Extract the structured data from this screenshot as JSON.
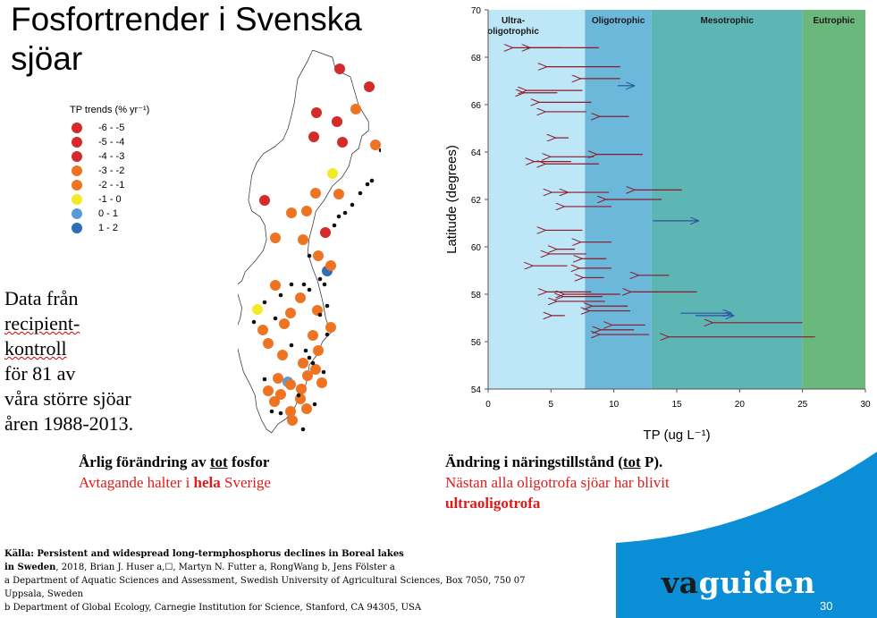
{
  "title": {
    "line1": "Fosfortrender i Svenska",
    "line2": "sjöar"
  },
  "legend": {
    "title": "TP trends (% yr⁻¹)",
    "items": [
      {
        "label": "-6 - -5",
        "color": "#d42a2a"
      },
      {
        "label": "-5 - -4",
        "color": "#d42a2a"
      },
      {
        "label": "-4 - -3",
        "color": "#d42a2a"
      },
      {
        "label": "-3 - -2",
        "color": "#ee7424"
      },
      {
        "label": "-2 - -1",
        "color": "#ee7424"
      },
      {
        "label": "-1 - 0",
        "color": "#f2ea28"
      },
      {
        "label": "0 - 1",
        "color": "#5b9bd5"
      },
      {
        "label": "1 - 2",
        "color": "#2f6db5"
      }
    ]
  },
  "data_text": {
    "line1a": "Data från ",
    "line1b": "recipient-",
    "line2a": "kontroll",
    "line2b": " för 81 av",
    "line3": "våra större sjöar",
    "line4": "åren 1988-2013."
  },
  "caption_left": {
    "line1a": "Årlig förändring av ",
    "line1b": "tot",
    "line1c": " fosfor",
    "line2a": "Avtagande halter i ",
    "line2b": "hela",
    "line2c": " Sverige"
  },
  "caption_right": {
    "line1a": "Ändring i näringstillstånd  (",
    "line1b": "tot",
    "line1c": " P).",
    "line2": "Nästan alla oligotrofa sjöar har blivit",
    "line3": "ultraoligotrofa"
  },
  "source": {
    "line1a": "Källa: Persistent and widespread long-termphosphorus declines in Boreal lakes",
    "line2a": "in Sweden",
    "line2b": ", 2018, Brian J. Huser a,☐, Martyn N. Futter a, RongWang b, Jens Fölster a",
    "line3": "a Department of Aquatic Sciences and Assessment, Swedish University of Agricultural Sciences, Box 7050, 750 07",
    "line4": "Uppsala, Sweden",
    "line5": "b Department of Global Ecology, Carnegie Institution for Science, Stanford, CA 94305, USA"
  },
  "logo": {
    "va": "va",
    "guiden": "guiden"
  },
  "page_number": "30",
  "colors": {
    "ultra": "#bde6f7",
    "oligo": "#6cb8db",
    "meso": "#5db5b4",
    "eutro": "#6ab87c",
    "arrow_red": "#8b1a2a",
    "arrow_blue": "#2c4fa0",
    "swoosh": "#0a8fd6"
  },
  "chart_data": {
    "type": "scatter",
    "xlabel": "TP (ug L⁻¹)",
    "ylabel": "Latitude (degrees)",
    "xlim": [
      0,
      30
    ],
    "ylim": [
      54,
      70
    ],
    "xticks": [
      "0",
      "5",
      "10",
      "15",
      "20",
      "25",
      "30"
    ],
    "yticks": [
      "54",
      "56",
      "58",
      "60",
      "62",
      "64",
      "66",
      "68",
      "70"
    ],
    "zones": [
      {
        "label": "Ultra-\noligotrophic",
        "from": 0,
        "to": 7.7,
        "color": "#bde6f7"
      },
      {
        "label": "Oligotrophic",
        "from": 7.7,
        "to": 13,
        "color": "#6cb8db"
      },
      {
        "label": "Mesotrophic",
        "from": 13,
        "to": 25,
        "color": "#5db5b4"
      },
      {
        "label": "Eutrophic",
        "from": 25,
        "to": 30,
        "color": "#6ab87c"
      }
    ],
    "arrows": [
      {
        "from": 8.8,
        "to": 1.9,
        "lat": 68.4,
        "dir": "down"
      },
      {
        "from": 5.8,
        "to": 3.3,
        "lat": 68.4,
        "dir": "down"
      },
      {
        "from": 10.5,
        "to": 4.6,
        "lat": 67.6,
        "dir": "down"
      },
      {
        "from": 10.5,
        "to": 7.3,
        "lat": 67.1,
        "dir": "down"
      },
      {
        "from": 10.3,
        "to": 11.6,
        "lat": 66.8,
        "dir": "up"
      },
      {
        "from": 7.5,
        "to": 3.0,
        "lat": 66.6,
        "dir": "down"
      },
      {
        "from": 5.5,
        "to": 2.8,
        "lat": 66.5,
        "dir": "down"
      },
      {
        "from": 8.2,
        "to": 4.0,
        "lat": 66.1,
        "dir": "down"
      },
      {
        "from": 7.8,
        "to": 4.5,
        "lat": 65.7,
        "dir": "down"
      },
      {
        "from": 11.2,
        "to": 8.8,
        "lat": 65.5,
        "dir": "down"
      },
      {
        "from": 6.4,
        "to": 5.3,
        "lat": 64.6,
        "dir": "down"
      },
      {
        "from": 12.3,
        "to": 8.6,
        "lat": 63.9,
        "dir": "down"
      },
      {
        "from": 8.4,
        "to": 4.9,
        "lat": 63.8,
        "dir": "down"
      },
      {
        "from": 6.6,
        "to": 3.6,
        "lat": 63.6,
        "dir": "down"
      },
      {
        "from": 8.8,
        "to": 4.5,
        "lat": 63.5,
        "dir": "down"
      },
      {
        "from": 15.4,
        "to": 11.6,
        "lat": 62.4,
        "dir": "down"
      },
      {
        "from": 9.6,
        "to": 6.3,
        "lat": 62.3,
        "dir": "down"
      },
      {
        "from": 6.5,
        "to": 5.0,
        "lat": 62.3,
        "dir": "down"
      },
      {
        "from": 13.8,
        "to": 9.3,
        "lat": 62.0,
        "dir": "down"
      },
      {
        "from": 9.8,
        "to": 6.0,
        "lat": 61.7,
        "dir": "down"
      },
      {
        "from": 13.1,
        "to": 16.7,
        "lat": 61.1,
        "dir": "up"
      },
      {
        "from": 7.5,
        "to": 4.5,
        "lat": 60.7,
        "dir": "down"
      },
      {
        "from": 9.8,
        "to": 7.3,
        "lat": 60.2,
        "dir": "down"
      },
      {
        "from": 6.9,
        "to": 5.4,
        "lat": 59.9,
        "dir": "down"
      },
      {
        "from": 7.8,
        "to": 4.8,
        "lat": 59.7,
        "dir": "down"
      },
      {
        "from": 9.4,
        "to": 7.4,
        "lat": 59.5,
        "dir": "down"
      },
      {
        "from": 6.3,
        "to": 3.5,
        "lat": 59.2,
        "dir": "down"
      },
      {
        "from": 9.8,
        "to": 7.2,
        "lat": 59.1,
        "dir": "down"
      },
      {
        "from": 14.4,
        "to": 11.9,
        "lat": 58.8,
        "dir": "down"
      },
      {
        "from": 9.2,
        "to": 7.5,
        "lat": 58.7,
        "dir": "down"
      },
      {
        "from": 8.2,
        "to": 4.6,
        "lat": 58.1,
        "dir": "down"
      },
      {
        "from": 16.6,
        "to": 11.3,
        "lat": 58.1,
        "dir": "down"
      },
      {
        "from": 10.5,
        "to": 6.0,
        "lat": 58.0,
        "dir": "down"
      },
      {
        "from": 9.1,
        "to": 5.9,
        "lat": 57.9,
        "dir": "down"
      },
      {
        "from": 9.3,
        "to": 5.4,
        "lat": 57.7,
        "dir": "down"
      },
      {
        "from": 11.1,
        "to": 8.2,
        "lat": 57.5,
        "dir": "down"
      },
      {
        "from": 11.3,
        "to": 8.0,
        "lat": 57.3,
        "dir": "down"
      },
      {
        "from": 6.1,
        "to": 5.0,
        "lat": 57.1,
        "dir": "down"
      },
      {
        "from": 15.3,
        "to": 19.3,
        "lat": 57.2,
        "dir": "up"
      },
      {
        "from": 16.5,
        "to": 19.5,
        "lat": 57.1,
        "dir": "up"
      },
      {
        "from": 25.0,
        "to": 17.8,
        "lat": 56.8,
        "dir": "down"
      },
      {
        "from": 12.5,
        "to": 9.8,
        "lat": 56.7,
        "dir": "down"
      },
      {
        "from": 11.6,
        "to": 8.9,
        "lat": 56.5,
        "dir": "down"
      },
      {
        "from": 26.0,
        "to": 14.3,
        "lat": 56.2,
        "dir": "down"
      },
      {
        "from": 12.8,
        "to": 8.8,
        "lat": 56.3,
        "dir": "down"
      }
    ]
  }
}
